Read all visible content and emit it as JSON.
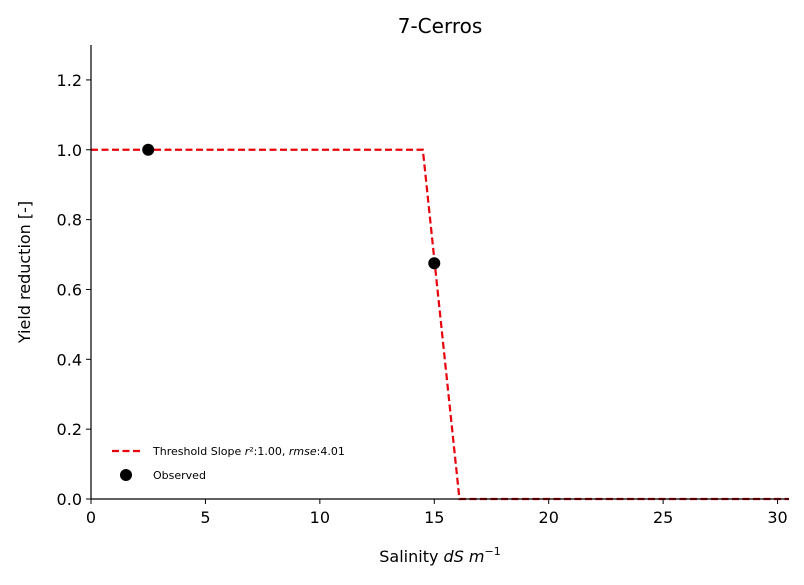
{
  "chart_data": {
    "type": "line",
    "title": "7-Cerros",
    "xlabel": {
      "prefix": "Salinity ",
      "var": "dS m",
      "exp": "−1"
    },
    "ylabel": "Yield reduction [-]",
    "xlim": [
      0,
      30.5
    ],
    "ylim": [
      0,
      1.3
    ],
    "x_ticks": [
      0,
      5,
      10,
      15,
      20,
      25,
      30
    ],
    "y_ticks": [
      0.0,
      0.2,
      0.4,
      0.6,
      0.8,
      1.0,
      1.2
    ],
    "x_tick_labels": [
      "0",
      "5",
      "10",
      "15",
      "20",
      "25",
      "30"
    ],
    "y_tick_labels": [
      "0.0",
      "0.2",
      "0.4",
      "0.6",
      "0.8",
      "1.0",
      "1.2"
    ],
    "legend_position": "lower-left",
    "series": [
      {
        "name": "Threshold Slope r²:1.00, rmse:4.01",
        "style": "dashed",
        "color": "#e8000b",
        "x": [
          0,
          14.5,
          16.1,
          30.5
        ],
        "y": [
          1.0,
          1.0,
          0.0,
          0.0
        ]
      },
      {
        "name": "Observed",
        "style": "markers",
        "color": "#000000",
        "x": [
          2.5,
          15.0
        ],
        "y": [
          1.0,
          0.675
        ]
      }
    ]
  }
}
